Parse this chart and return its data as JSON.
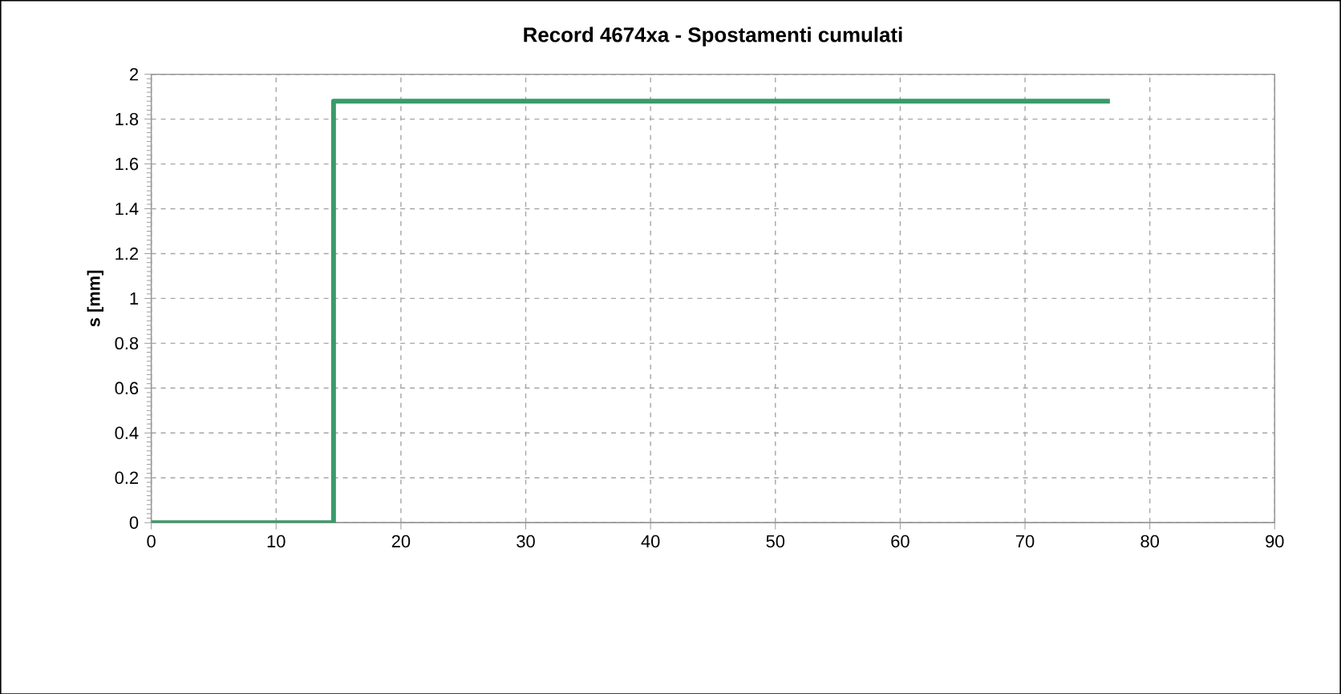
{
  "chart_data": {
    "type": "line",
    "title": "Record 4674xa - Spostamenti cumulati",
    "ylabel": "s [mm]",
    "x": [
      0,
      14.6,
      14.6,
      76.8
    ],
    "series": [
      {
        "color": "#3a9a6a",
        "values": [
          0,
          0,
          1.88,
          1.88
        ]
      }
    ],
    "xlim": [
      0,
      90
    ],
    "xticks": [
      0,
      10,
      20,
      30,
      40,
      50,
      60,
      70,
      80,
      90
    ],
    "ylim": [
      0,
      2
    ],
    "yticks": [
      0,
      0.2,
      0.4,
      0.6,
      0.8,
      1,
      1.2,
      1.4,
      1.6,
      1.8,
      2
    ],
    "grid": true,
    "marker": "none",
    "line_style": "solid"
  }
}
